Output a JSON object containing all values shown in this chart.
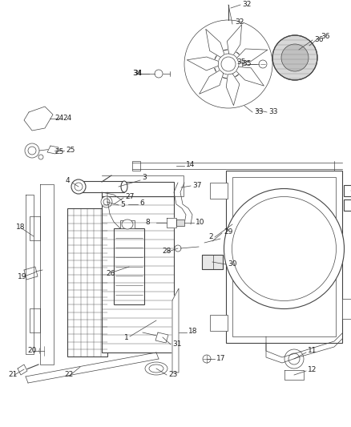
{
  "background_color": "#ffffff",
  "line_color": "#444444",
  "label_color": "#222222",
  "fig_width": 4.38,
  "fig_height": 5.33,
  "dpi": 100
}
